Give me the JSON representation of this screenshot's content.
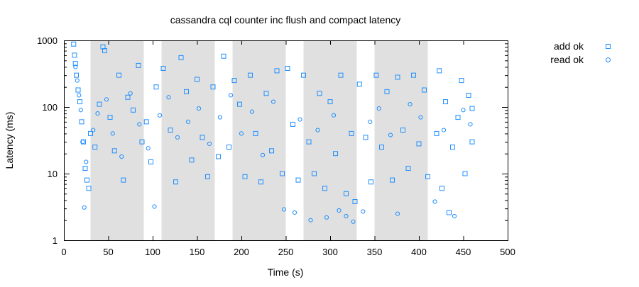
{
  "chart_data": {
    "type": "scatter",
    "title": "cassandra cql counter inc flush and compact latency",
    "xlabel": "Time (s)",
    "ylabel": "Latency (ms)",
    "xlim": [
      0,
      500
    ],
    "ylim": [
      1,
      1000
    ],
    "yscale": "log",
    "xticks": [
      "0",
      "50",
      "100",
      "150",
      "200",
      "250",
      "300",
      "350",
      "400",
      "450",
      "500"
    ],
    "yticks": [
      "1",
      "10",
      "100",
      "1000"
    ],
    "shaded_regions": [
      [
        30,
        90
      ],
      [
        110,
        170
      ],
      [
        190,
        250
      ],
      [
        270,
        330
      ],
      [
        350,
        410
      ]
    ],
    "legend_position": "outside-top-right",
    "series": [
      {
        "name": "add ok",
        "marker": "square",
        "color": "#1f8fff",
        "points": [
          [
            11,
            880
          ],
          [
            12,
            600
          ],
          [
            13,
            450
          ],
          [
            14,
            300
          ],
          [
            16,
            180
          ],
          [
            18,
            120
          ],
          [
            20,
            60
          ],
          [
            22,
            30
          ],
          [
            24,
            12
          ],
          [
            26,
            8
          ],
          [
            28,
            6
          ],
          [
            30,
            40
          ],
          [
            35,
            25
          ],
          [
            40,
            110
          ],
          [
            44,
            800
          ],
          [
            46,
            700
          ],
          [
            52,
            70
          ],
          [
            57,
            22
          ],
          [
            62,
            300
          ],
          [
            67,
            8
          ],
          [
            72,
            140
          ],
          [
            78,
            90
          ],
          [
            84,
            420
          ],
          [
            88,
            30
          ],
          [
            93,
            60
          ],
          [
            98,
            15
          ],
          [
            104,
            200
          ],
          [
            112,
            380
          ],
          [
            120,
            45
          ],
          [
            126,
            7.5
          ],
          [
            132,
            550
          ],
          [
            138,
            170
          ],
          [
            144,
            16
          ],
          [
            150,
            260
          ],
          [
            156,
            35
          ],
          [
            162,
            9
          ],
          [
            168,
            200
          ],
          [
            174,
            18
          ],
          [
            180,
            580
          ],
          [
            186,
            25
          ],
          [
            192,
            250
          ],
          [
            198,
            110
          ],
          [
            204,
            9
          ],
          [
            210,
            300
          ],
          [
            216,
            40
          ],
          [
            222,
            7.5
          ],
          [
            228,
            160
          ],
          [
            234,
            22
          ],
          [
            240,
            350
          ],
          [
            246,
            10
          ],
          [
            252,
            380
          ],
          [
            258,
            55
          ],
          [
            264,
            8
          ],
          [
            270,
            300
          ],
          [
            276,
            30
          ],
          [
            282,
            10
          ],
          [
            288,
            160
          ],
          [
            294,
            6
          ],
          [
            300,
            120
          ],
          [
            306,
            20
          ],
          [
            312,
            300
          ],
          [
            318,
            5
          ],
          [
            324,
            40
          ],
          [
            328,
            3.8
          ],
          [
            333,
            220
          ],
          [
            340,
            35
          ],
          [
            346,
            7.5
          ],
          [
            352,
            300
          ],
          [
            358,
            25
          ],
          [
            364,
            170
          ],
          [
            370,
            8
          ],
          [
            376,
            280
          ],
          [
            382,
            45
          ],
          [
            388,
            12
          ],
          [
            394,
            300
          ],
          [
            400,
            28
          ],
          [
            406,
            180
          ],
          [
            410,
            9
          ],
          [
            420,
            40
          ],
          [
            423,
            350
          ],
          [
            426,
            6
          ],
          [
            430,
            120
          ],
          [
            434,
            2.6
          ],
          [
            438,
            25
          ],
          [
            444,
            70
          ],
          [
            448,
            250
          ],
          [
            452,
            10
          ],
          [
            456,
            150
          ],
          [
            460,
            30
          ],
          [
            460,
            95
          ]
        ]
      },
      {
        "name": "read ok",
        "marker": "circle",
        "color": "#1f8fff",
        "points": [
          [
            13,
            400
          ],
          [
            15,
            250
          ],
          [
            17,
            150
          ],
          [
            19,
            90
          ],
          [
            21,
            30
          ],
          [
            23,
            3.1
          ],
          [
            25,
            15
          ],
          [
            33,
            45
          ],
          [
            38,
            80
          ],
          [
            48,
            130
          ],
          [
            55,
            40
          ],
          [
            65,
            18
          ],
          [
            75,
            160
          ],
          [
            85,
            55
          ],
          [
            95,
            24
          ],
          [
            102,
            3.2
          ],
          [
            108,
            75
          ],
          [
            118,
            140
          ],
          [
            128,
            35
          ],
          [
            140,
            60
          ],
          [
            152,
            95
          ],
          [
            164,
            28
          ],
          [
            176,
            70
          ],
          [
            188,
            150
          ],
          [
            200,
            40
          ],
          [
            212,
            85
          ],
          [
            224,
            19
          ],
          [
            236,
            120
          ],
          [
            248,
            2.9
          ],
          [
            260,
            2.6
          ],
          [
            266,
            65
          ],
          [
            278,
            2.0
          ],
          [
            286,
            45
          ],
          [
            296,
            2.2
          ],
          [
            304,
            75
          ],
          [
            310,
            2.8
          ],
          [
            318,
            2.3
          ],
          [
            326,
            1.9
          ],
          [
            337,
            2.7
          ],
          [
            345,
            60
          ],
          [
            355,
            95
          ],
          [
            368,
            38
          ],
          [
            376,
            2.5
          ],
          [
            390,
            110
          ],
          [
            402,
            70
          ],
          [
            418,
            3.8
          ],
          [
            428,
            45
          ],
          [
            440,
            2.3
          ],
          [
            450,
            90
          ],
          [
            458,
            55
          ]
        ]
      }
    ]
  }
}
